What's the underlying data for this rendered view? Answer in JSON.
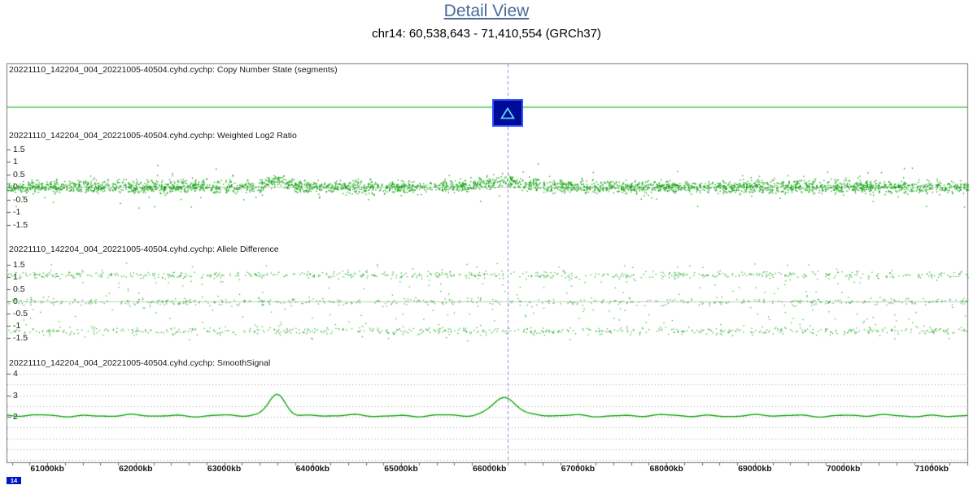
{
  "header": {
    "title": "Detail View",
    "subtitle": "chr14: 60,538,643 - 71,410,554 (GRCh37)"
  },
  "chromosome_badge": "14",
  "colors": {
    "data_green": "#00a000",
    "segment_green": "#00a800",
    "title_blue": "#4a6b96",
    "cursor_blue": "#9090e0",
    "marker_fill": "#000a99",
    "marker_border": "#3050ff",
    "marker_triangle": "#55dcec",
    "badge_blue": "#0018c8",
    "grid_gray": "#a0a0a0",
    "zero_line_gray": "#c8c8c8",
    "border_gray": "#777777",
    "text_dark": "#1a1a1a"
  },
  "x_axis": {
    "unit": "kb",
    "range_kb": [
      60538.643,
      71410.554
    ],
    "ticks": [
      {
        "value_kb": 61000,
        "label": "61000kb"
      },
      {
        "value_kb": 62000,
        "label": "62000kb"
      },
      {
        "value_kb": 63000,
        "label": "63000kb"
      },
      {
        "value_kb": 64000,
        "label": "64000kb"
      },
      {
        "value_kb": 65000,
        "label": "65000kb"
      },
      {
        "value_kb": 66000,
        "label": "66000kb"
      },
      {
        "value_kb": 67000,
        "label": "67000kb"
      },
      {
        "value_kb": 68000,
        "label": "68000kb"
      },
      {
        "value_kb": 69000,
        "label": "69000kb"
      },
      {
        "value_kb": 70000,
        "label": "70000kb"
      },
      {
        "value_kb": 71000,
        "label": "71000kb"
      }
    ],
    "minor_tick_step_kb": 200
  },
  "cursor": {
    "position_kb": 66200,
    "style": "dashed-vertical"
  },
  "chart_data": [
    {
      "track": "copy_number_state",
      "type": "line",
      "title": "20221110_142204_004_20221005-40504.cyhd.cychp: Copy Number State (segments)",
      "segments": [
        {
          "start_kb": 60538.643,
          "end_kb": 71410.554,
          "value": 2
        }
      ],
      "marker": {
        "shape": "triangle-in-square",
        "position_kb": 66200
      }
    },
    {
      "track": "weighted_log2_ratio",
      "type": "scatter",
      "title": "20221110_142204_004_20221005-40504.cyhd.cychp: Weighted Log2 Ratio",
      "ylim": [
        -1.75,
        1.75
      ],
      "yticks": [
        1.5,
        1,
        0.5,
        0,
        -0.5,
        -1,
        -1.5
      ],
      "baseline": 0,
      "noise_sd": 0.12,
      "elevated_regions": [
        {
          "center_kb": 63600,
          "sigma_kb": 110,
          "shift": 0.28
        },
        {
          "center_kb": 66170,
          "sigma_kb": 230,
          "shift": 0.22
        }
      ],
      "approx_point_count": 3200
    },
    {
      "track": "allele_difference",
      "type": "scatter",
      "title": "20221110_142204_004_20221005-40504.cyhd.cychp: Allele Difference",
      "ylim": [
        -1.75,
        1.75
      ],
      "yticks": [
        1.5,
        1,
        0.5,
        0,
        -0.5,
        -1,
        -1.5
      ],
      "bands": [
        {
          "value": 1.1,
          "approx_point_count": 650
        },
        {
          "value": 0,
          "approx_point_count": 480
        },
        {
          "value": -1.2,
          "approx_point_count": 620
        }
      ],
      "band_noise_sd": 0.07,
      "stray_point_count": 260
    },
    {
      "track": "smooth_signal",
      "type": "line",
      "title": "20221110_142204_004_20221005-40504.cyhd.cychp: SmoothSignal",
      "ylim": [
        -0.2,
        4.3
      ],
      "yticks": [
        4,
        3,
        2
      ],
      "gridlines": {
        "style": "dotted",
        "step": 0.5,
        "from": 0,
        "to": 4
      },
      "baseline": 2.05,
      "peaks": [
        {
          "center_kb": 63600,
          "sigma_kb": 95,
          "height": 1.0,
          "apex_value": 3.05
        },
        {
          "center_kb": 66170,
          "sigma_kb": 130,
          "height": 0.88,
          "apex_value": 2.93
        }
      ]
    }
  ]
}
